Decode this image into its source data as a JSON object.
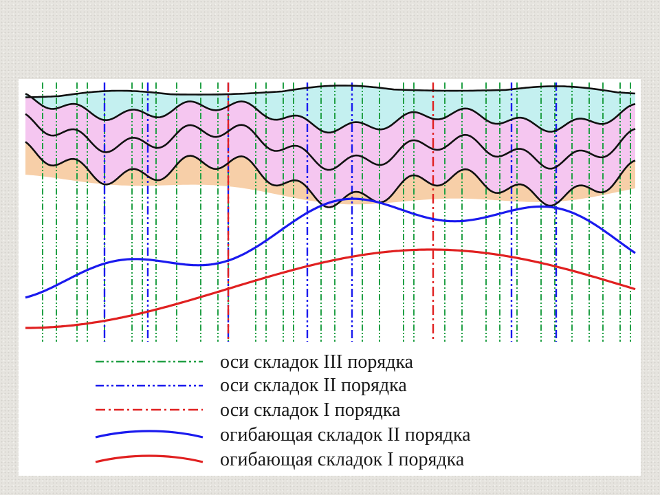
{
  "legend": {
    "items": [
      {
        "label": "оси складок III порядка",
        "style": "axis-dashdotdot",
        "color": "#22a046"
      },
      {
        "label": "оси складок  II порядка",
        "style": "axis-dashdotdot",
        "color": "#1a1aee"
      },
      {
        "label": "оси складок   I порядка",
        "style": "axis-dashdot",
        "color": "#e02020"
      },
      {
        "label": "огибающая складок  II порядка",
        "style": "solid",
        "color": "#1a1aee"
      },
      {
        "label": "огибающая складок   I порядка",
        "style": "solid",
        "color": "#e02020"
      }
    ]
  },
  "colors": {
    "layer_orange": "#f7cfa8",
    "layer_pink": "#f5c6f0",
    "layer_cyan": "#c4f0f0",
    "layer_green": "#c8f0c0",
    "fold_line": "#111111",
    "order1": "#e02020",
    "order2": "#1a1aee",
    "order3": "#22a046"
  },
  "icons": [
    "fold-diagram-icon"
  ]
}
